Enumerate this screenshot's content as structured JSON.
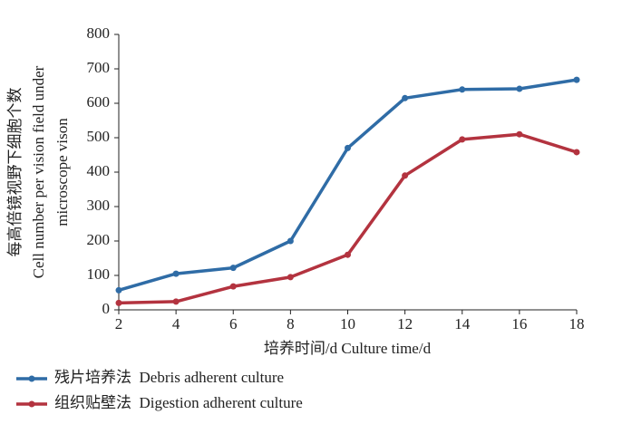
{
  "chart_data": {
    "type": "line",
    "x_label": "培养时间/d Culture time/d",
    "y_label": [
      "每高倍镜视野下细胞个数",
      "Cell number per vision field under",
      "microscope vison"
    ],
    "x": [
      2,
      4,
      6,
      8,
      10,
      12,
      14,
      16,
      18
    ],
    "series": [
      {
        "name": "残片培养法  Debris adherent culture",
        "color": "#2f6ca6",
        "values": [
          57,
          105,
          122,
          200,
          470,
          615,
          640,
          642,
          668
        ]
      },
      {
        "name": "组织贴壁法  Digestion adherent culture",
        "color": "#b3333f",
        "values": [
          20,
          24,
          68,
          95,
          160,
          390,
          495,
          510,
          458
        ]
      }
    ],
    "xlim": [
      2,
      18
    ],
    "xticks": [
      2,
      4,
      6,
      8,
      10,
      12,
      14,
      16,
      18
    ],
    "ylim": [
      0,
      800
    ],
    "yticks": [
      0,
      100,
      200,
      300,
      400,
      500,
      600,
      700,
      800
    ],
    "grid": false,
    "legend": "bottom-left"
  }
}
